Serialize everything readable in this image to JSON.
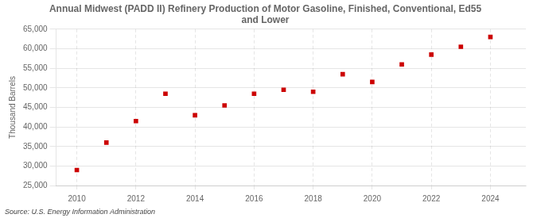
{
  "chart_data": {
    "type": "scatter",
    "title": "Annual Midwest (PADD II) Refinery Production of Motor Gasoline, Finished, Conventional, Ed55\nand Lower",
    "ylabel": "Thousand Barrels",
    "annotation": "Source: U.S. Energy Information Administration",
    "x": [
      2010,
      2011,
      2012,
      2013,
      2014,
      2015,
      2016,
      2017,
      2018,
      2019,
      2020,
      2021,
      2022,
      2023,
      2024
    ],
    "values": [
      29000,
      36000,
      41500,
      48500,
      43000,
      45500,
      48500,
      49500,
      49000,
      53500,
      51500,
      56000,
      58500,
      60500,
      63000
    ],
    "color": "#cc0000",
    "marker": "square",
    "xlim": [
      2009.3,
      2025.2
    ],
    "ylim": [
      25000,
      65000
    ],
    "xticks": [
      2010,
      2012,
      2014,
      2016,
      2018,
      2020,
      2022,
      2024
    ],
    "yticks": [
      {
        "value": 25000,
        "label": "25,000"
      },
      {
        "value": 30000,
        "label": "30,000"
      },
      {
        "value": 35000,
        "label": "35,000"
      },
      {
        "value": 40000,
        "label": "40,000"
      },
      {
        "value": 45000,
        "label": "45,000"
      },
      {
        "value": 50000,
        "label": "50,000"
      },
      {
        "value": 55000,
        "label": "55,000"
      },
      {
        "value": 60000,
        "label": "60,000"
      },
      {
        "value": 65000,
        "label": "65,000"
      }
    ],
    "grid": true
  }
}
